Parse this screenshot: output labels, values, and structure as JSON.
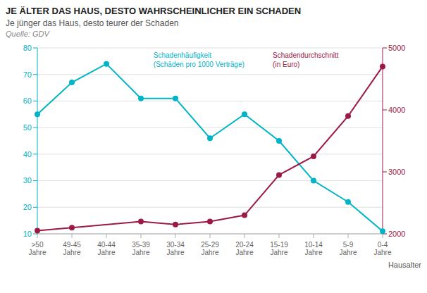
{
  "chart_data": {
    "type": "line",
    "title": "JE ÄLTER DAS HAUS, DESTO WAHRSCHEINLICHER EIN SCHADEN",
    "subtitle": "Je jünger das Haus, desto teurer der Schaden",
    "source": "Quelle: GDV",
    "x_label": "Hausalter",
    "categories": [
      ">50\nJahre",
      "49-45\nJahre",
      "40-44\nJahre",
      "35-39\nJahre",
      "30-34\nJahre",
      "25-29\nJahre",
      "20-24\nJahre",
      "15-19\nJahre",
      "10-14\nJahre",
      "5-9\nJahre",
      "0-4\nJahre"
    ],
    "series": [
      {
        "name": "Schadenhäufigkeit\n(Schäden pro 1000 Verträge)",
        "color": "#00b4c8",
        "values": [
          55,
          67,
          74,
          61,
          61,
          46,
          55,
          45,
          30,
          22,
          11
        ]
      },
      {
        "name": "Schadendurchschnitt\n(in Euro)",
        "color": "#9b1a44",
        "values": [
          2050,
          2100,
          null,
          2200,
          2150,
          2200,
          2300,
          2950,
          3250,
          3900,
          4700
        ],
        "axis": "y2"
      }
    ],
    "ylim": [
      10,
      80
    ],
    "yticks": [
      10,
      20,
      30,
      40,
      50,
      60,
      70,
      80
    ],
    "y2lim": [
      2000,
      5000
    ],
    "y2ticks": [
      2000,
      3000,
      4000,
      5000
    ],
    "grid": true,
    "marker": "circle"
  }
}
